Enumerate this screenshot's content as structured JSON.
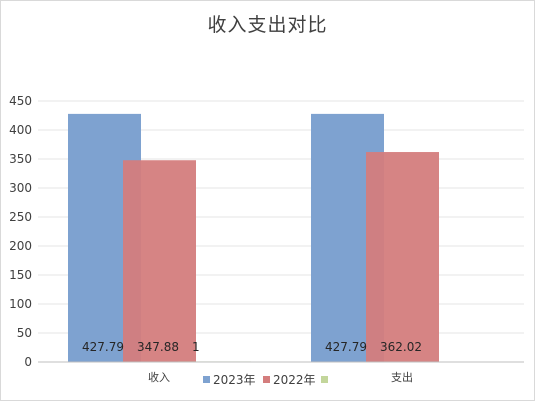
{
  "chart_data": {
    "type": "bar",
    "title": "收入支出对比",
    "categories": [
      "收入",
      "支出"
    ],
    "series": [
      {
        "name": "2023年",
        "color": "#7ea2d0",
        "values": [
          427.79,
          427.79
        ],
        "labels": [
          "427.79",
          "427.79"
        ]
      },
      {
        "name": "2022年",
        "color": "#d47d7d",
        "values": [
          347.88,
          362.02
        ],
        "labels": [
          "347.88",
          "362.02"
        ]
      },
      {
        "name": "",
        "color": "#c3d69b",
        "values": [
          1,
          0
        ],
        "labels": [
          "1",
          ""
        ]
      }
    ],
    "ylim": [
      0,
      450
    ],
    "yticks": [
      0,
      50,
      100,
      150,
      200,
      250,
      300,
      350,
      400,
      450
    ],
    "grid": true,
    "legend_position": "bottom"
  }
}
